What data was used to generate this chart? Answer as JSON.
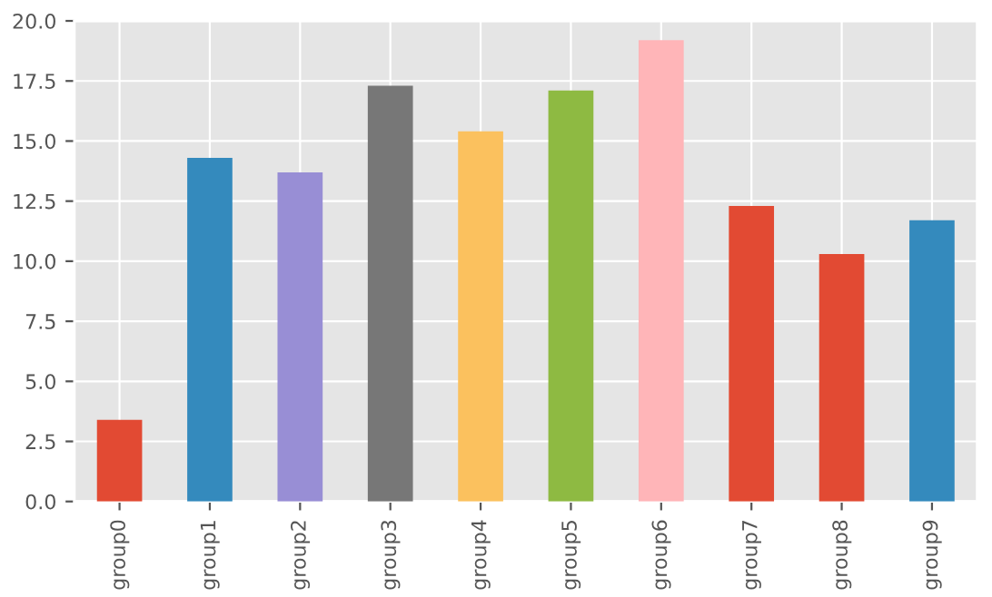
{
  "chart_data": {
    "type": "bar",
    "categories": [
      "group0",
      "group1",
      "group2",
      "group3",
      "group4",
      "group5",
      "group6",
      "group7",
      "group8",
      "group9"
    ],
    "values": [
      3.4,
      14.3,
      13.7,
      17.3,
      15.4,
      17.1,
      19.2,
      12.3,
      10.3,
      11.7
    ],
    "colors": [
      "#e24a33",
      "#348abd",
      "#988ed5",
      "#777777",
      "#fbc15e",
      "#8eba42",
      "#ffb5b8",
      "#e24a33",
      "#e24a33",
      "#348abd"
    ],
    "ylim": [
      0,
      20
    ],
    "yticks": [
      {
        "value": 0,
        "label": "0.0"
      },
      2.5,
      {
        "value": 5,
        "label": "5.0"
      },
      7.5,
      {
        "value": 10,
        "label": "10.0"
      },
      12.5,
      {
        "value": 15,
        "label": "15.0"
      },
      17.5,
      {
        "value": 20,
        "label": "20.0"
      }
    ],
    "grid": true
  }
}
